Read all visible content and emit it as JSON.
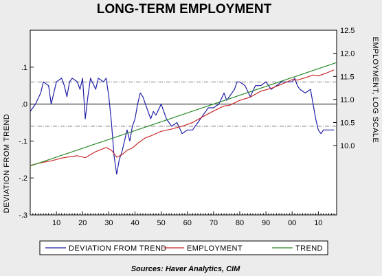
{
  "chart_data": {
    "type": "line",
    "title": "LONG-TERM EMPLOYMENT",
    "ylabel_left": "DEVIATION FROM TREND",
    "ylabel_right": "EMPLOYMENT, LOG SCALE",
    "source": "Sources:  Haver Analytics, CIM",
    "x_range": [
      1900,
      2017
    ],
    "x_ticks": [
      1910,
      1920,
      1930,
      1940,
      1950,
      1960,
      1970,
      1980,
      1990,
      2000,
      2010
    ],
    "x_tick_labels": [
      "10",
      "20",
      "30",
      "40",
      "50",
      "60",
      "70",
      "80",
      "90",
      "00",
      "10"
    ],
    "left_axis": {
      "range": [
        -0.3,
        0.2
      ],
      "ticks": [
        0.1,
        0.0,
        -0.1,
        -0.2,
        -0.3
      ],
      "tick_labels": [
        ".1",
        ".0",
        "-.1",
        "-.2",
        "-.3"
      ]
    },
    "right_axis": {
      "range": [
        8.5,
        12.5
      ],
      "ticks": [
        10.0,
        10.5,
        11.0,
        11.5,
        12.0,
        12.5
      ],
      "tick_labels": [
        "10.0",
        "10.5",
        "11.0",
        "11.5",
        "12.0",
        "12.5"
      ]
    },
    "reference_lines": [
      0.06,
      -0.06
    ],
    "series": [
      {
        "name": "DEVIATION FROM TREND",
        "axis": "left",
        "color": "#1f1fa8",
        "x": [
          1900,
          1902,
          1904,
          1905,
          1907,
          1908,
          1910,
          1912,
          1913,
          1914,
          1915,
          1916,
          1918,
          1919,
          1920,
          1921,
          1922,
          1923,
          1925,
          1926,
          1928,
          1929,
          1930,
          1931,
          1932,
          1933,
          1934,
          1935,
          1936,
          1937,
          1938,
          1939,
          1940,
          1941,
          1942,
          1943,
          1944,
          1945,
          1946,
          1947,
          1948,
          1950,
          1952,
          1954,
          1956,
          1958,
          1960,
          1962,
          1964,
          1966,
          1968,
          1970,
          1972,
          1974,
          1975,
          1976,
          1978,
          1979,
          1980,
          1982,
          1984,
          1986,
          1988,
          1990,
          1992,
          1994,
          1996,
          1998,
          2000,
          2001,
          2002,
          2003,
          2005,
          2007,
          2008,
          2009,
          2010,
          2011,
          2012,
          2014,
          2016
        ],
        "values": [
          -0.02,
          0.0,
          0.03,
          0.06,
          0.05,
          0.0,
          0.06,
          0.07,
          0.05,
          0.02,
          0.06,
          0.07,
          0.06,
          0.04,
          0.07,
          -0.04,
          0.02,
          0.07,
          0.04,
          0.07,
          0.06,
          0.07,
          0.02,
          -0.05,
          -0.14,
          -0.19,
          -0.15,
          -0.13,
          -0.1,
          -0.07,
          -0.1,
          -0.06,
          -0.04,
          0.0,
          0.03,
          0.02,
          0.0,
          -0.02,
          -0.04,
          -0.02,
          -0.03,
          0.0,
          -0.04,
          -0.06,
          -0.05,
          -0.08,
          -0.07,
          -0.07,
          -0.05,
          -0.03,
          -0.01,
          -0.01,
          0.0,
          0.03,
          0.01,
          0.02,
          0.04,
          0.06,
          0.06,
          0.05,
          0.02,
          0.05,
          0.05,
          0.06,
          0.04,
          0.05,
          0.06,
          0.06,
          0.06,
          0.07,
          0.05,
          0.04,
          0.03,
          0.04,
          0.0,
          -0.04,
          -0.07,
          -0.08,
          -0.07,
          -0.07,
          -0.07
        ]
      },
      {
        "name": "EMPLOYMENT",
        "axis": "right",
        "color": "#cc2a2a",
        "x": [
          1900,
          1904,
          1908,
          1912,
          1914,
          1918,
          1921,
          1925,
          1929,
          1931,
          1933,
          1935,
          1937,
          1939,
          1941,
          1944,
          1946,
          1950,
          1954,
          1958,
          1962,
          1966,
          1970,
          1974,
          1976,
          1980,
          1984,
          1988,
          1992,
          1996,
          2000,
          2002,
          2005,
          2008,
          2010,
          2013,
          2016
        ],
        "values": [
          9.57,
          9.63,
          9.67,
          9.73,
          9.75,
          9.78,
          9.74,
          9.87,
          9.96,
          9.9,
          9.75,
          9.8,
          9.9,
          9.95,
          10.05,
          10.17,
          10.21,
          10.31,
          10.36,
          10.42,
          10.5,
          10.63,
          10.75,
          10.86,
          10.87,
          10.98,
          11.05,
          11.18,
          11.24,
          11.33,
          11.43,
          11.42,
          11.47,
          11.53,
          11.51,
          11.57,
          11.64
        ]
      },
      {
        "name": "TREND",
        "axis": "right",
        "color": "#2a8a2a",
        "x": [
          1900,
          2017
        ],
        "values": [
          9.56,
          11.8
        ]
      }
    ],
    "legend": [
      "DEVIATION FROM TREND",
      "EMPLOYMENT",
      "TREND"
    ],
    "legend_placement": "bottom",
    "grid": false
  }
}
